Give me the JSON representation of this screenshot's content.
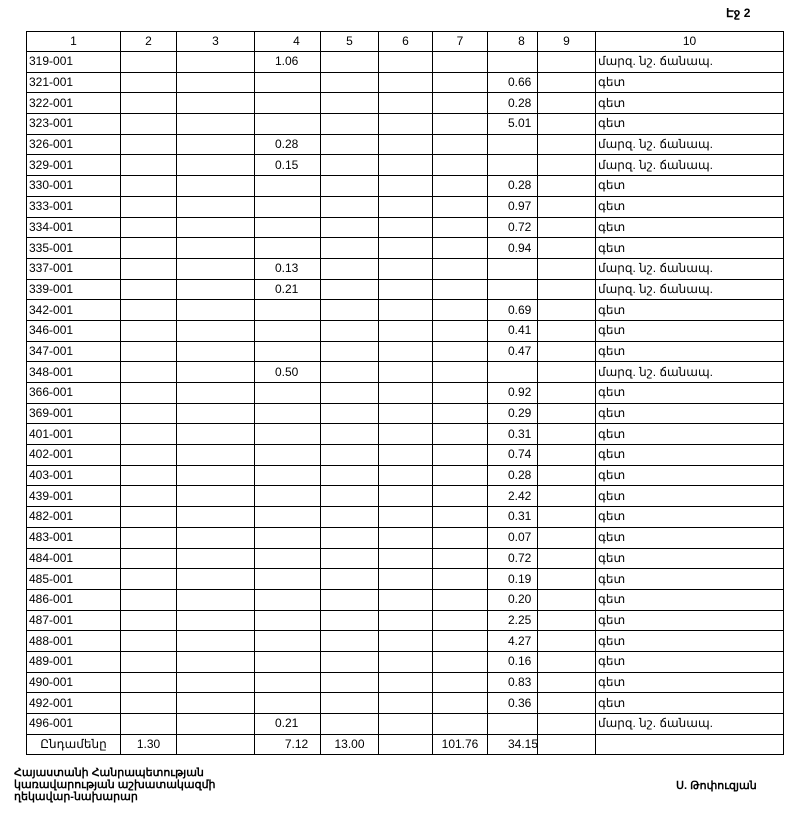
{
  "page_label": "Էջ 2",
  "columns": [
    "1",
    "2",
    "3",
    "4",
    "5",
    "6",
    "7",
    "8",
    "9",
    "10"
  ],
  "rows": [
    [
      "319-001",
      "",
      "",
      "1.06",
      "",
      "",
      "",
      "",
      "",
      "մարզ. նշ. ճանապ."
    ],
    [
      "321-001",
      "",
      "",
      "",
      "",
      "",
      "",
      "0.66",
      "",
      "գետ"
    ],
    [
      "322-001",
      "",
      "",
      "",
      "",
      "",
      "",
      "0.28",
      "",
      "գետ"
    ],
    [
      "323-001",
      "",
      "",
      "",
      "",
      "",
      "",
      "5.01",
      "",
      "գետ"
    ],
    [
      "326-001",
      "",
      "",
      "0.28",
      "",
      "",
      "",
      "",
      "",
      "մարզ. նշ. ճանապ."
    ],
    [
      "329-001",
      "",
      "",
      "0.15",
      "",
      "",
      "",
      "",
      "",
      "մարզ. նշ. ճանապ."
    ],
    [
      "330-001",
      "",
      "",
      "",
      "",
      "",
      "",
      "0.28",
      "",
      "գետ"
    ],
    [
      "333-001",
      "",
      "",
      "",
      "",
      "",
      "",
      "0.97",
      "",
      "գետ"
    ],
    [
      "334-001",
      "",
      "",
      "",
      "",
      "",
      "",
      "0.72",
      "",
      "գետ"
    ],
    [
      "335-001",
      "",
      "",
      "",
      "",
      "",
      "",
      "0.94",
      "",
      "գետ"
    ],
    [
      "337-001",
      "",
      "",
      "0.13",
      "",
      "",
      "",
      "",
      "",
      "մարզ. նշ. ճանապ."
    ],
    [
      "339-001",
      "",
      "",
      "0.21",
      "",
      "",
      "",
      "",
      "",
      "մարզ. նշ. ճանապ."
    ],
    [
      "342-001",
      "",
      "",
      "",
      "",
      "",
      "",
      "0.69",
      "",
      "գետ"
    ],
    [
      "346-001",
      "",
      "",
      "",
      "",
      "",
      "",
      "0.41",
      "",
      "գետ"
    ],
    [
      "347-001",
      "",
      "",
      "",
      "",
      "",
      "",
      "0.47",
      "",
      "գետ"
    ],
    [
      "348-001",
      "",
      "",
      "0.50",
      "",
      "",
      "",
      "",
      "",
      "մարզ. նշ. ճանապ."
    ],
    [
      "366-001",
      "",
      "",
      "",
      "",
      "",
      "",
      "0.92",
      "",
      "գետ"
    ],
    [
      "369-001",
      "",
      "",
      "",
      "",
      "",
      "",
      "0.29",
      "",
      "գետ"
    ],
    [
      "401-001",
      "",
      "",
      "",
      "",
      "",
      "",
      "0.31",
      "",
      "գետ"
    ],
    [
      "402-001",
      "",
      "",
      "",
      "",
      "",
      "",
      "0.74",
      "",
      "գետ"
    ],
    [
      "403-001",
      "",
      "",
      "",
      "",
      "",
      "",
      "0.28",
      "",
      "գետ"
    ],
    [
      "439-001",
      "",
      "",
      "",
      "",
      "",
      "",
      "2.42",
      "",
      "գետ"
    ],
    [
      "482-001",
      "",
      "",
      "",
      "",
      "",
      "",
      "0.31",
      "",
      "գետ"
    ],
    [
      "483-001",
      "",
      "",
      "",
      "",
      "",
      "",
      "0.07",
      "",
      "գետ"
    ],
    [
      "484-001",
      "",
      "",
      "",
      "",
      "",
      "",
      "0.72",
      "",
      "գետ"
    ],
    [
      "485-001",
      "",
      "",
      "",
      "",
      "",
      "",
      "0.19",
      "",
      "գետ"
    ],
    [
      "486-001",
      "",
      "",
      "",
      "",
      "",
      "",
      "0.20",
      "",
      "գետ"
    ],
    [
      "487-001",
      "",
      "",
      "",
      "",
      "",
      "",
      "2.25",
      "",
      "գետ"
    ],
    [
      "488-001",
      "",
      "",
      "",
      "",
      "",
      "",
      "4.27",
      "",
      "գետ"
    ],
    [
      "489-001",
      "",
      "",
      "",
      "",
      "",
      "",
      "0.16",
      "",
      "գետ"
    ],
    [
      "490-001",
      "",
      "",
      "",
      "",
      "",
      "",
      "0.83",
      "",
      "գետ"
    ],
    [
      "492-001",
      "",
      "",
      "",
      "",
      "",
      "",
      "0.36",
      "",
      "գետ"
    ],
    [
      "496-001",
      "",
      "",
      "0.21",
      "",
      "",
      "",
      "",
      "",
      "մարզ. նշ. ճանապ."
    ]
  ],
  "total": [
    "Ընդամենը",
    "1.30",
    "",
    "7.12",
    "13.00",
    "",
    "101.76",
    "34.15",
    "",
    ""
  ],
  "footer": {
    "left_lines": [
      "Հայաստանի Հանրապետության",
      "կառավարության աշխատակազմի",
      "ղեկավար-նախարար"
    ],
    "right": "Ս. Թոփուզյան"
  }
}
